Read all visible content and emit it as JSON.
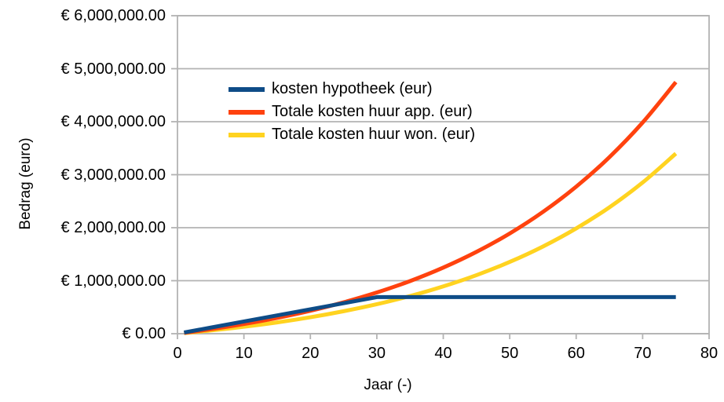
{
  "chart_data": {
    "type": "line",
    "title": "",
    "xlabel": "Jaar (-)",
    "ylabel": "Bedrag (euro)",
    "xlim": [
      0,
      80
    ],
    "ylim": [
      0,
      6000000
    ],
    "x_ticks": [
      0,
      10,
      20,
      30,
      40,
      50,
      60,
      70,
      80
    ],
    "y_ticks": [
      0,
      1000000,
      2000000,
      3000000,
      4000000,
      5000000,
      6000000
    ],
    "y_tick_labels": [
      "€ 0.00",
      "€ 1,000,000.00",
      "€ 2,000,000.00",
      "€ 3,000,000.00",
      "€ 4,000,000.00",
      "€ 5,000,000.00",
      "€ 6,000,000.00"
    ],
    "grid": "horizontal",
    "legend_position": "inside-top-left",
    "grid_color": "#b3b3b3",
    "text_color": "#000000",
    "background_color": "#ffffff",
    "x": [
      1,
      5,
      10,
      15,
      20,
      25,
      30,
      35,
      40,
      45,
      50,
      55,
      60,
      65,
      70,
      75
    ],
    "series": [
      {
        "name": "kosten hypotheek (eur)",
        "color": "#0E4C87",
        "smooth": false,
        "values": [
          23000,
          115000,
          230000,
          345000,
          460000,
          575000,
          690000,
          690000,
          690000,
          690000,
          690000,
          690000,
          690000,
          690000,
          690000,
          690000
        ]
      },
      {
        "name": "Totale kosten huur app. (eur)",
        "color": "#FF420E",
        "smooth": true,
        "values": [
          15800,
          84000,
          183000,
          298000,
          433000,
          592000,
          777000,
          993000,
          1247000,
          1544000,
          1891000,
          2298000,
          2774000,
          3331000,
          3984000,
          4747000
        ]
      },
      {
        "name": "Totale kosten huur won. (eur)",
        "color": "#FFD320",
        "smooth": true,
        "values": [
          11300,
          60000,
          131000,
          213000,
          310000,
          424000,
          556000,
          711000,
          893000,
          1105000,
          1354000,
          1645000,
          1986000,
          2385000,
          2852000,
          3399000
        ]
      }
    ]
  }
}
